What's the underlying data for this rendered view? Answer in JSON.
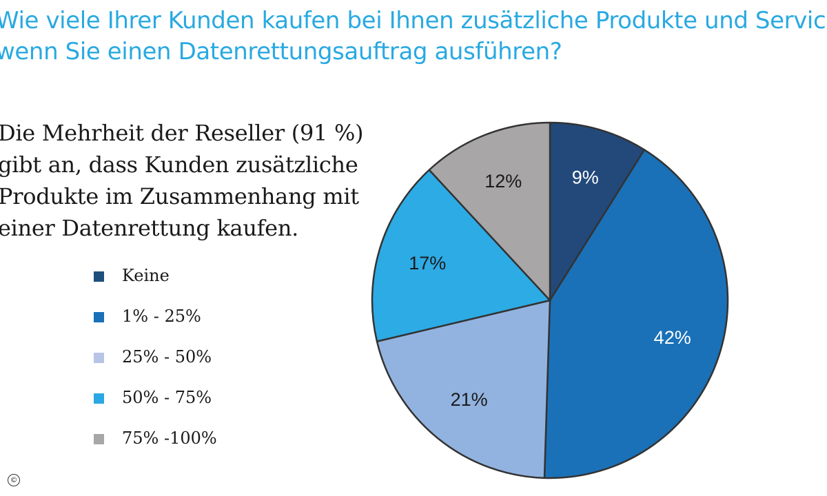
{
  "title": {
    "line1": "Wie viele Ihrer Kunden kaufen bei Ihnen zusätzliche Produkte und Services,",
    "line2": "wenn Sie einen Datenrettungsauftrag ausführen?"
  },
  "summary": {
    "lines": [
      "Die Mehrheit der Reseller (91 %)",
      "gibt an, dass Kunden zusätzliche",
      "Produkte im Zusammenhang mit",
      "einer Datenrettung kaufen."
    ]
  },
  "copyright_symbol": "©",
  "colors": {
    "title": "#29a9e1",
    "outline": "#333333"
  },
  "chart_data": {
    "type": "pie",
    "title": "Wie viele Ihrer Kunden kaufen bei Ihnen zusätzliche Produkte und Services, wenn Sie einen Datenrettungsauftrag ausführen?",
    "legend_position": "left",
    "slices": [
      {
        "label": "Keine",
        "value": 9,
        "display": "9%",
        "color": "#22497a",
        "legend_color": "#1d4f7c",
        "label_color": "#ffffff"
      },
      {
        "label": "1% - 25%",
        "value": 42,
        "display": "42%",
        "color": "#1a71b8",
        "legend_color": "#1a71b8",
        "label_color": "#ffffff"
      },
      {
        "label": "25% - 50%",
        "value": 21,
        "display": "21%",
        "color": "#92b3e0",
        "legend_color": "#b8c4e6",
        "label_color": "#1a1a1a"
      },
      {
        "label": "50% - 75%",
        "value": 17,
        "display": "17%",
        "color": "#2dabe5",
        "legend_color": "#2aa8e3",
        "label_color": "#1a1a1a"
      },
      {
        "label": "75% -100%",
        "value": 12,
        "display": "12%",
        "color": "#a8a6a7",
        "legend_color": "#a8a6a7",
        "label_color": "#1a1a1a"
      }
    ]
  }
}
